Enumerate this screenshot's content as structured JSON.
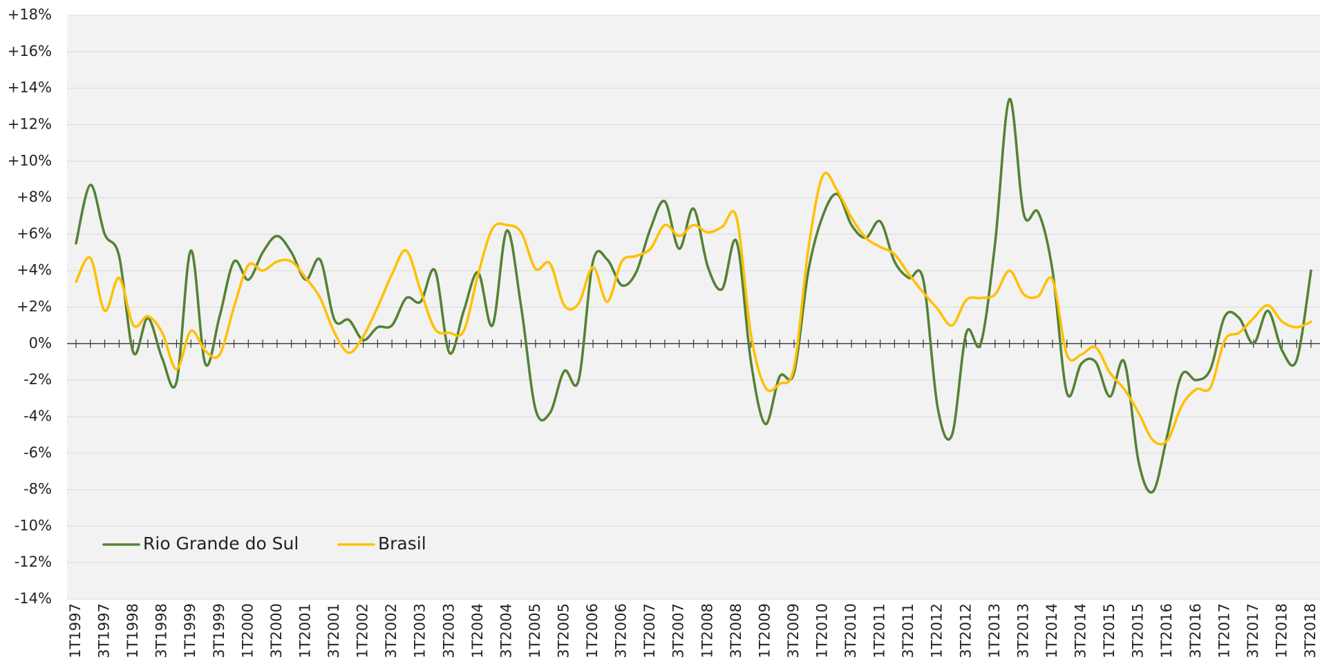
{
  "chart_data": {
    "type": "line",
    "categories": [
      "1T1997",
      null,
      "3T1997",
      null,
      "1T1998",
      null,
      "3T1998",
      null,
      "1T1999",
      null,
      "3T1999",
      null,
      "1T2000",
      null,
      "3T2000",
      null,
      "1T2001",
      null,
      "3T2001",
      null,
      "1T2002",
      null,
      "3T2002",
      null,
      "1T2003",
      null,
      "3T2003",
      null,
      "1T2004",
      null,
      "3T2004",
      null,
      "1T2005",
      null,
      "3T2005",
      null,
      "1T2006",
      null,
      "3T2006",
      null,
      "1T2007",
      null,
      "3T2007",
      null,
      "1T2008",
      null,
      "3T2008",
      null,
      "1T2009",
      null,
      "3T2009",
      null,
      "1T2010",
      null,
      "3T2010",
      null,
      "1T2011",
      null,
      "3T2011",
      null,
      "1T2012",
      null,
      "3T2012",
      null,
      "1T2013",
      null,
      "3T2013",
      null,
      "1T2014",
      null,
      "3T2014",
      null,
      "1T2015",
      null,
      "3T2015",
      null,
      "1T2016",
      null,
      "3T2016",
      null,
      "1T2017",
      null,
      "3T2017",
      null,
      "1T2018",
      null,
      "3T2018"
    ],
    "series": [
      {
        "name": "Rio Grande do Sul",
        "color": "#548235",
        "values": [
          5.5,
          8.7,
          6.0,
          4.8,
          -0.5,
          1.4,
          -0.8,
          -2.1,
          5.1,
          -1.1,
          1.5,
          4.5,
          3.5,
          5.0,
          5.9,
          5.0,
          3.5,
          4.6,
          1.3,
          1.3,
          0.2,
          0.9,
          1.0,
          2.5,
          2.3,
          4.0,
          -0.5,
          1.8,
          3.9,
          1.0,
          6.2,
          2.0,
          -3.6,
          -3.8,
          -1.5,
          -2.0,
          4.5,
          4.6,
          3.2,
          3.9,
          6.3,
          7.8,
          5.2,
          7.4,
          4.2,
          3.0,
          5.6,
          -1.0,
          -4.4,
          -1.8,
          -1.6,
          4.0,
          7.0,
          8.2,
          6.5,
          5.8,
          6.7,
          4.5,
          3.6,
          3.5,
          -3.5,
          -5.0,
          0.6,
          0.0,
          5.5,
          13.4,
          7.1,
          7.2,
          4.0,
          -2.7,
          -1.1,
          -1.0,
          -2.9,
          -1.0,
          -6.5,
          -8.1,
          -5.0,
          -1.7,
          -2.0,
          -1.4,
          1.5,
          1.4,
          0.0,
          1.8,
          -0.4,
          -0.9,
          4.0
        ]
      },
      {
        "name": "Brasil",
        "color": "#ffc000",
        "values": [
          3.4,
          4.7,
          1.8,
          3.6,
          1.0,
          1.5,
          0.6,
          -1.4,
          0.7,
          -0.4,
          -0.6,
          2.0,
          4.3,
          4.0,
          4.5,
          4.5,
          3.6,
          2.5,
          0.6,
          -0.5,
          0.4,
          2.0,
          3.8,
          5.1,
          2.9,
          0.8,
          0.6,
          0.7,
          3.8,
          6.3,
          6.5,
          6.1,
          4.1,
          4.4,
          2.1,
          2.2,
          4.2,
          2.3,
          4.5,
          4.8,
          5.2,
          6.5,
          5.9,
          6.5,
          6.1,
          6.4,
          6.9,
          0.5,
          -2.4,
          -2.2,
          -1.3,
          5.2,
          9.2,
          8.4,
          6.9,
          5.8,
          5.3,
          4.9,
          3.8,
          2.8,
          1.9,
          1.0,
          2.4,
          2.5,
          2.7,
          4.0,
          2.7,
          2.6,
          3.5,
          -0.6,
          -0.6,
          -0.2,
          -1.6,
          -2.5,
          -3.8,
          -5.3,
          -5.3,
          -3.4,
          -2.5,
          -2.4,
          0.2,
          0.6,
          1.4,
          2.1,
          1.2,
          0.9,
          1.2
        ]
      }
    ],
    "ylim": [
      -14,
      18
    ],
    "yticks": [
      {
        "value": -14,
        "label": "-14%"
      },
      {
        "value": -12,
        "label": "-12%"
      },
      {
        "value": -10,
        "label": "-10%"
      },
      {
        "value": -8,
        "label": "-8%"
      },
      {
        "value": -6,
        "label": "-6%"
      },
      {
        "value": -4,
        "label": "-4%"
      },
      {
        "value": -2,
        "label": "-2%"
      },
      {
        "value": 0,
        "label": "0%"
      },
      {
        "value": 2,
        "label": "+2%"
      },
      {
        "value": 4,
        "label": "+4%"
      },
      {
        "value": 6,
        "label": "+6%"
      },
      {
        "value": 8,
        "label": "+8%"
      },
      {
        "value": 10,
        "label": "+10%"
      },
      {
        "value": 12,
        "label": "+12%"
      },
      {
        "value": 14,
        "label": "+14%"
      },
      {
        "value": 16,
        "label": "+16%"
      },
      {
        "value": 18,
        "label": "+18%"
      }
    ],
    "grid": true,
    "legend": "bottom-left"
  }
}
